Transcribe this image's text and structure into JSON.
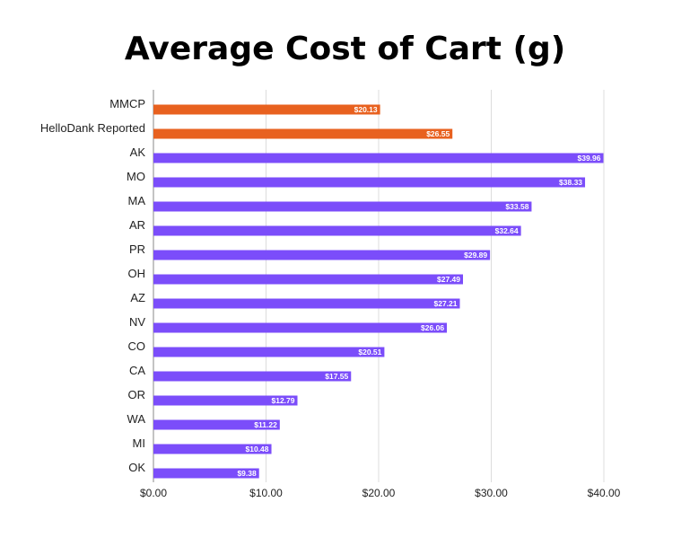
{
  "chart_data": {
    "type": "bar",
    "orientation": "horizontal",
    "title": "Average Cost of Cart (g)",
    "xlabel": "",
    "ylabel": "",
    "xlim": [
      0,
      40
    ],
    "x_ticks": [
      "$0.00",
      "$10.00",
      "$20.00",
      "$30.00",
      "$40.00"
    ],
    "x_tick_values": [
      0,
      10,
      20,
      30,
      40
    ],
    "grid": true,
    "categories": [
      "MMCP",
      "HelloDank Reported",
      "AK",
      "MO",
      "MA",
      "AR",
      "PR",
      "OH",
      "AZ",
      "NV",
      "CO",
      "CA",
      "OR",
      "WA",
      "MI",
      "OK"
    ],
    "values": [
      20.13,
      26.55,
      39.96,
      38.33,
      33.58,
      32.64,
      29.89,
      27.49,
      27.21,
      26.06,
      20.51,
      17.55,
      12.79,
      11.22,
      10.48,
      9.38
    ],
    "data_labels": [
      "$20.13",
      "$26.55",
      "$39.96",
      "$38.33",
      "$33.58",
      "$32.64",
      "$29.89",
      "$27.49",
      "$27.21",
      "$26.06",
      "$20.51",
      "$17.55",
      "$12.79",
      "$11.22",
      "$10.48",
      "$9.38"
    ],
    "bar_colors": [
      "#e8611f",
      "#e8611f",
      "#7b4dfa",
      "#7b4dfa",
      "#7b4dfa",
      "#7b4dfa",
      "#7b4dfa",
      "#7b4dfa",
      "#7b4dfa",
      "#7b4dfa",
      "#7b4dfa",
      "#7b4dfa",
      "#7b4dfa",
      "#7b4dfa",
      "#7b4dfa",
      "#7b4dfa"
    ]
  }
}
